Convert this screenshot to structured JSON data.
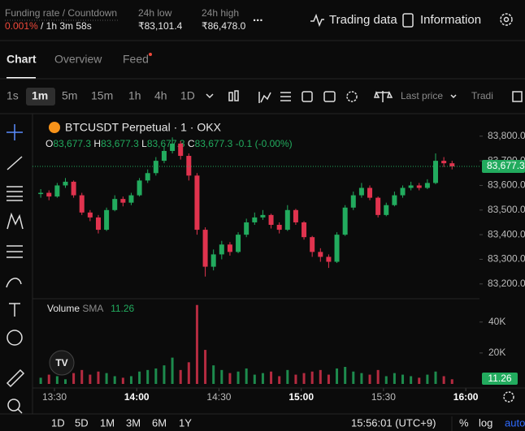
{
  "header": {
    "funding_label": "Funding rate / Countdown",
    "funding_rate": "0.001%",
    "countdown": "/ 1h 3m 58s",
    "low_label": "24h low",
    "low": "₹83,101.4",
    "high_label": "24h high",
    "high": "₹86,478.0",
    "more": "...",
    "trading_data": "Trading data",
    "information": "Information"
  },
  "tabs": [
    "Chart",
    "Overview",
    "Feed"
  ],
  "toolbar": {
    "intervals": [
      "1s",
      "1m",
      "5m",
      "15m",
      "1h",
      "4h",
      "1D"
    ],
    "price_type": "Last price",
    "trading": "Tradi"
  },
  "footer": {
    "ranges": [
      "1D",
      "5D",
      "1M",
      "3M",
      "6M",
      "1Y"
    ],
    "clock": "15:56:01 (UTC+9)",
    "percent": "%",
    "log": "log",
    "auto": "auto"
  },
  "chart_data": {
    "type": "candlestick",
    "legend": {
      "symbol": "BTCUSDT Perpetual · 1 · OKX",
      "ohlc": [
        "O",
        "83,677.3",
        "H",
        "83,677.3",
        "L",
        "83,677.3",
        "C",
        "83,677.3"
      ],
      "change": "-0.1 (-0.00%)"
    },
    "volume_label": "Volume",
    "sma_label": "SMA",
    "sma_value": 11.26,
    "up_color": "#22ab5e",
    "down_color": "#e0334e",
    "xlim": [
      "13:22",
      "16:05"
    ],
    "xticks": [
      "13:30",
      "14:00",
      "14:30",
      "15:00",
      "15:30",
      "16:00"
    ],
    "ylim": [
      83150,
      83875
    ],
    "yticks": [
      {
        "value": 83200,
        "label": "83,200.0"
      },
      {
        "value": 83300,
        "label": "83,300.0"
      },
      {
        "value": 83400,
        "label": "83,400.0"
      },
      {
        "value": 83500,
        "label": "83,500.0"
      },
      {
        "value": 83600,
        "label": "83,600.0"
      },
      {
        "value": 83700,
        "label": "83,700.0"
      },
      {
        "value": 83800,
        "label": "83,800.0"
      }
    ],
    "last_price": {
      "value": 83677.3,
      "label": "83,677.3"
    },
    "vlim": [
      0,
      53000
    ],
    "vticks": [
      {
        "value": 20000,
        "label": "20K"
      },
      {
        "value": 40000,
        "label": "40K"
      }
    ],
    "candles": [
      {
        "t": "13:25",
        "o": 83565,
        "h": 83585,
        "l": 83550,
        "c": 83570,
        "v": 4000
      },
      {
        "t": "13:28",
        "o": 83570,
        "h": 83580,
        "l": 83540,
        "c": 83555,
        "v": 6000
      },
      {
        "t": "13:31",
        "o": 83555,
        "h": 83610,
        "l": 83550,
        "c": 83600,
        "v": 5000
      },
      {
        "t": "13:34",
        "o": 83600,
        "h": 83630,
        "l": 83590,
        "c": 83615,
        "v": 3000
      },
      {
        "t": "13:37",
        "o": 83615,
        "h": 83620,
        "l": 83550,
        "c": 83560,
        "v": 7000
      },
      {
        "t": "13:40",
        "o": 83560,
        "h": 83570,
        "l": 83480,
        "c": 83490,
        "v": 9000
      },
      {
        "t": "13:43",
        "o": 83490,
        "h": 83500,
        "l": 83455,
        "c": 83470,
        "v": 6000
      },
      {
        "t": "13:46",
        "o": 83470,
        "h": 83480,
        "l": 83405,
        "c": 83420,
        "v": 8000
      },
      {
        "t": "13:49",
        "o": 83420,
        "h": 83510,
        "l": 83415,
        "c": 83500,
        "v": 7000
      },
      {
        "t": "13:52",
        "o": 83500,
        "h": 83560,
        "l": 83495,
        "c": 83545,
        "v": 5000
      },
      {
        "t": "13:55",
        "o": 83545,
        "h": 83555,
        "l": 83515,
        "c": 83530,
        "v": 4000
      },
      {
        "t": "13:58",
        "o": 83530,
        "h": 83570,
        "l": 83520,
        "c": 83560,
        "v": 5000
      },
      {
        "t": "14:01",
        "o": 83560,
        "h": 83630,
        "l": 83555,
        "c": 83620,
        "v": 8000
      },
      {
        "t": "14:04",
        "o": 83620,
        "h": 83665,
        "l": 83610,
        "c": 83650,
        "v": 9000
      },
      {
        "t": "14:07",
        "o": 83650,
        "h": 83715,
        "l": 83640,
        "c": 83700,
        "v": 10000
      },
      {
        "t": "14:10",
        "o": 83700,
        "h": 83760,
        "l": 83690,
        "c": 83740,
        "v": 12000
      },
      {
        "t": "14:13",
        "o": 83740,
        "h": 83795,
        "l": 83730,
        "c": 83770,
        "v": 17000
      },
      {
        "t": "14:16",
        "o": 83770,
        "h": 83780,
        "l": 83705,
        "c": 83720,
        "v": 9000
      },
      {
        "t": "14:19",
        "o": 83720,
        "h": 83730,
        "l": 83620,
        "c": 83640,
        "v": 14000
      },
      {
        "t": "14:22",
        "o": 83640,
        "h": 83650,
        "l": 83400,
        "c": 83420,
        "v": 51000
      },
      {
        "t": "14:25",
        "o": 83420,
        "h": 83430,
        "l": 83230,
        "c": 83270,
        "v": 22000
      },
      {
        "t": "14:28",
        "o": 83270,
        "h": 83340,
        "l": 83255,
        "c": 83320,
        "v": 12000
      },
      {
        "t": "14:31",
        "o": 83320,
        "h": 83375,
        "l": 83300,
        "c": 83360,
        "v": 9000
      },
      {
        "t": "14:34",
        "o": 83360,
        "h": 83370,
        "l": 83315,
        "c": 83330,
        "v": 7000
      },
      {
        "t": "14:37",
        "o": 83330,
        "h": 83410,
        "l": 83325,
        "c": 83400,
        "v": 8000
      },
      {
        "t": "14:40",
        "o": 83400,
        "h": 83465,
        "l": 83390,
        "c": 83450,
        "v": 10000
      },
      {
        "t": "14:43",
        "o": 83450,
        "h": 83490,
        "l": 83440,
        "c": 83470,
        "v": 6000
      },
      {
        "t": "14:46",
        "o": 83470,
        "h": 83500,
        "l": 83460,
        "c": 83480,
        "v": 7000
      },
      {
        "t": "14:49",
        "o": 83480,
        "h": 83485,
        "l": 83425,
        "c": 83440,
        "v": 8000
      },
      {
        "t": "14:52",
        "o": 83440,
        "h": 83450,
        "l": 83405,
        "c": 83420,
        "v": 5000
      },
      {
        "t": "14:55",
        "o": 83420,
        "h": 83520,
        "l": 83415,
        "c": 83500,
        "v": 9000
      },
      {
        "t": "14:58",
        "o": 83500,
        "h": 83505,
        "l": 83440,
        "c": 83450,
        "v": 6000
      },
      {
        "t": "15:01",
        "o": 83450,
        "h": 83455,
        "l": 83380,
        "c": 83390,
        "v": 7000
      },
      {
        "t": "15:04",
        "o": 83390,
        "h": 83395,
        "l": 83310,
        "c": 83330,
        "v": 8000
      },
      {
        "t": "15:07",
        "o": 83330,
        "h": 83345,
        "l": 83290,
        "c": 83310,
        "v": 9000
      },
      {
        "t": "15:10",
        "o": 83310,
        "h": 83320,
        "l": 83265,
        "c": 83290,
        "v": 6000
      },
      {
        "t": "15:13",
        "o": 83290,
        "h": 83410,
        "l": 83285,
        "c": 83400,
        "v": 10000
      },
      {
        "t": "15:16",
        "o": 83400,
        "h": 83520,
        "l": 83395,
        "c": 83510,
        "v": 11000
      },
      {
        "t": "15:19",
        "o": 83510,
        "h": 83575,
        "l": 83500,
        "c": 83560,
        "v": 8000
      },
      {
        "t": "15:22",
        "o": 83560,
        "h": 83610,
        "l": 83550,
        "c": 83590,
        "v": 7000
      },
      {
        "t": "15:25",
        "o": 83590,
        "h": 83600,
        "l": 83540,
        "c": 83550,
        "v": 6000
      },
      {
        "t": "15:28",
        "o": 83550,
        "h": 83555,
        "l": 83470,
        "c": 83480,
        "v": 9000
      },
      {
        "t": "15:31",
        "o": 83480,
        "h": 83530,
        "l": 83475,
        "c": 83520,
        "v": 5000
      },
      {
        "t": "15:34",
        "o": 83520,
        "h": 83575,
        "l": 83515,
        "c": 83560,
        "v": 7000
      },
      {
        "t": "15:37",
        "o": 83560,
        "h": 83600,
        "l": 83550,
        "c": 83590,
        "v": 6000
      },
      {
        "t": "15:40",
        "o": 83590,
        "h": 83615,
        "l": 83580,
        "c": 83600,
        "v": 5000
      },
      {
        "t": "15:43",
        "o": 83600,
        "h": 83610,
        "l": 83580,
        "c": 83590,
        "v": 4000
      },
      {
        "t": "15:46",
        "o": 83590,
        "h": 83625,
        "l": 83585,
        "c": 83610,
        "v": 6000
      },
      {
        "t": "15:49",
        "o": 83610,
        "h": 83730,
        "l": 83605,
        "c": 83700,
        "v": 8000
      },
      {
        "t": "15:52",
        "o": 83700,
        "h": 83715,
        "l": 83675,
        "c": 83690,
        "v": 5000
      },
      {
        "t": "15:55",
        "o": 83690,
        "h": 83700,
        "l": 83665,
        "c": 83677.3,
        "v": 3000
      }
    ]
  }
}
